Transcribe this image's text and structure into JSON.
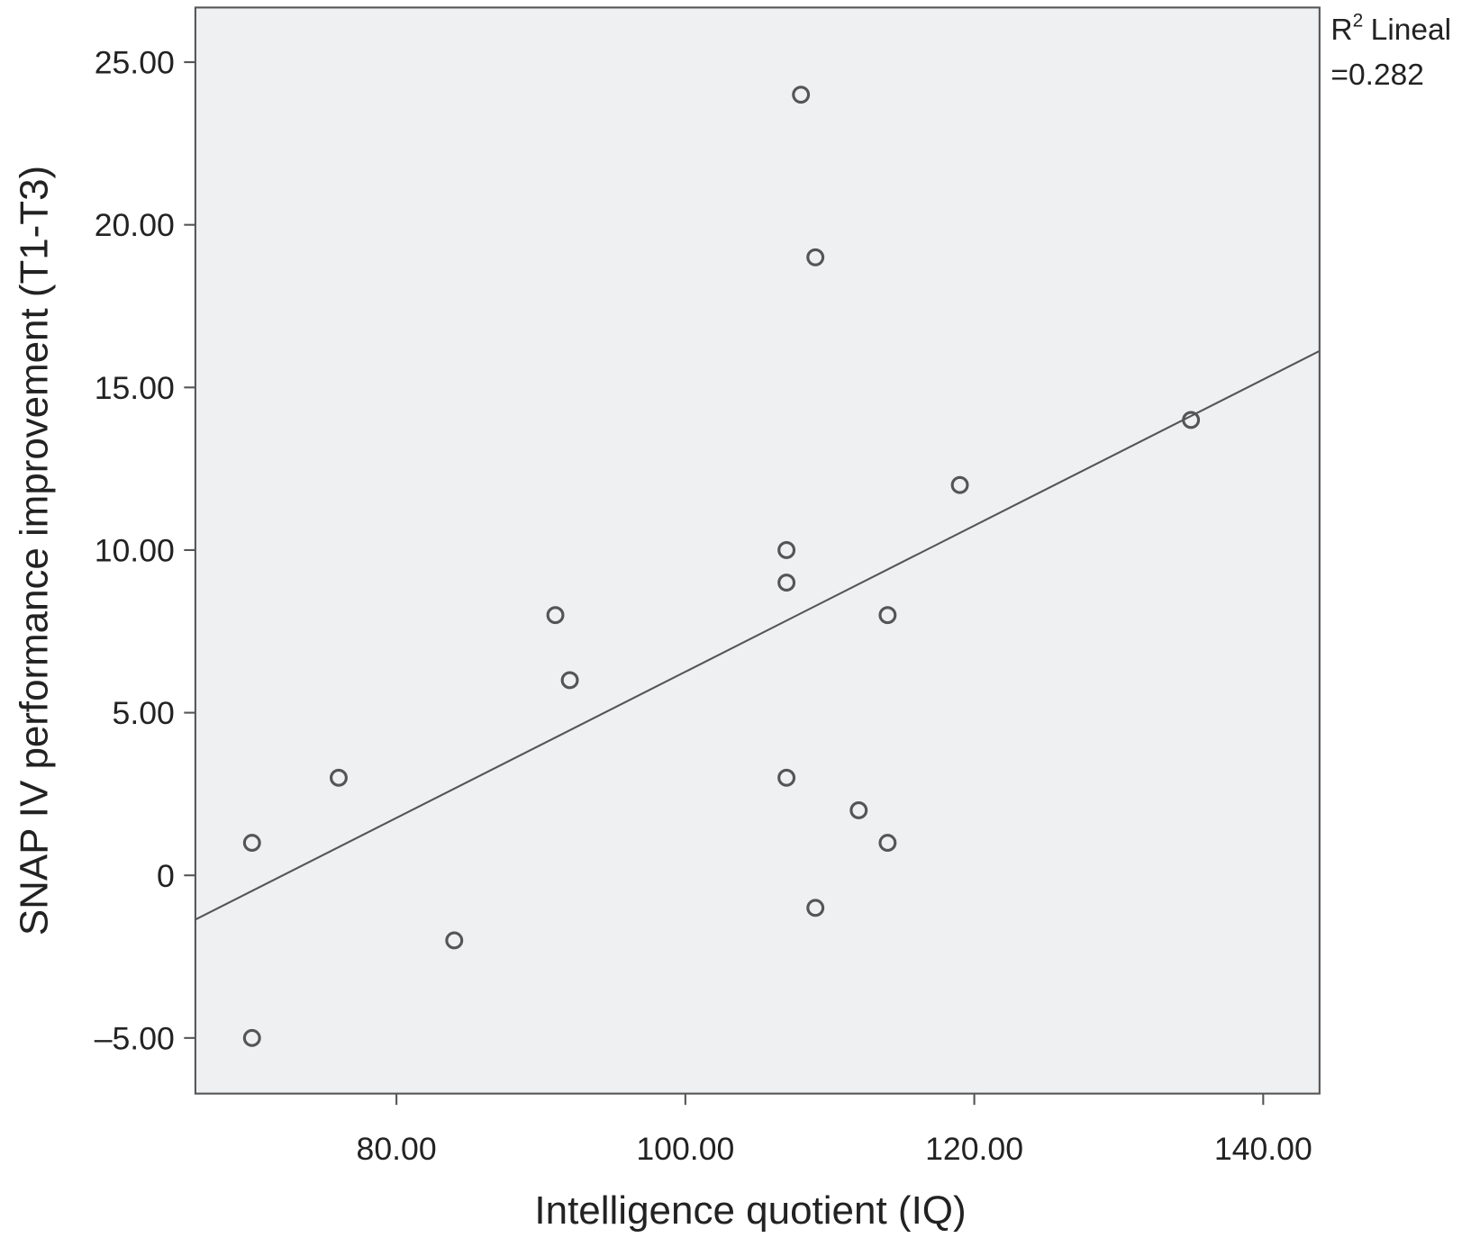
{
  "chart_data": {
    "type": "scatter",
    "x_label": "Intelligence quotient (IQ)",
    "y_label": "SNAP IV performance improvement (T1-T3)",
    "annotation": {
      "label": "R",
      "superscript": "2",
      "method": "Lineal",
      "value": "=0.282"
    },
    "x": [
      70,
      70,
      76,
      84,
      91,
      92,
      107,
      107,
      107,
      108,
      109,
      109,
      112,
      114,
      114,
      119,
      135
    ],
    "values": [
      1,
      -5,
      3,
      -2,
      8,
      6,
      10,
      9,
      3,
      24,
      19,
      -1,
      2,
      8,
      1,
      12,
      14
    ],
    "fit_line": {
      "x": [
        66.08,
        143.9
      ],
      "y": [
        -1.36,
        16.12
      ]
    },
    "xlim": [
      66.08,
      143.9
    ],
    "ylim": [
      -6.71,
      26.68
    ],
    "xticks": [
      {
        "value": 80,
        "label": "80.00"
      },
      {
        "value": 100,
        "label": "100.00"
      },
      {
        "value": 120,
        "label": "120.00"
      },
      {
        "value": 140,
        "label": "140.00"
      }
    ],
    "yticks": [
      {
        "value": -5,
        "label": "–5.00"
      },
      0,
      {
        "value": 5,
        "label": "5.00"
      },
      {
        "value": 10,
        "label": "10.00"
      },
      {
        "value": 15,
        "label": "15.00"
      },
      {
        "value": 20,
        "label": "20.00"
      },
      {
        "value": 25,
        "label": "25.00"
      }
    ],
    "plot_background": "#eff0f2",
    "marker_color": "#555555",
    "line_color": "#555555"
  }
}
